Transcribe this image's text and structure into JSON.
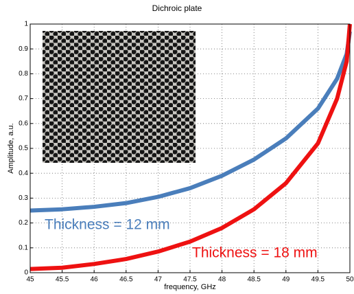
{
  "chart_data": {
    "type": "line",
    "title": "Dichroic plate",
    "x_label": "frequency, GHz",
    "y_label": "Amplitude, a.u.",
    "x": [
      45,
      45.5,
      46,
      46.5,
      47,
      47.5,
      48,
      48.5,
      49,
      49.5,
      49.8,
      49.95,
      50
    ],
    "series": [
      {
        "name": "Thickness = 12 mm",
        "color": "#4a7ebb",
        "values": [
          0.25,
          0.255,
          0.265,
          0.28,
          0.305,
          0.34,
          0.39,
          0.455,
          0.54,
          0.66,
          0.78,
          0.88,
          0.97
        ]
      },
      {
        "name": "Thickness = 18 mm",
        "color": "#ee1111",
        "values": [
          0.015,
          0.02,
          0.035,
          0.055,
          0.085,
          0.125,
          0.18,
          0.255,
          0.36,
          0.52,
          0.7,
          0.85,
          1
        ]
      }
    ],
    "xlim": [
      45,
      50
    ],
    "xticks": [
      45,
      45.5,
      46,
      46.5,
      47,
      47.5,
      48,
      48.5,
      49,
      49.5,
      50
    ],
    "ylim": [
      0,
      1
    ],
    "yticks": [
      0,
      0.1,
      0.2,
      0.3,
      0.4,
      0.5,
      0.6,
      0.7,
      0.8,
      0.9,
      1
    ],
    "grid": true
  }
}
